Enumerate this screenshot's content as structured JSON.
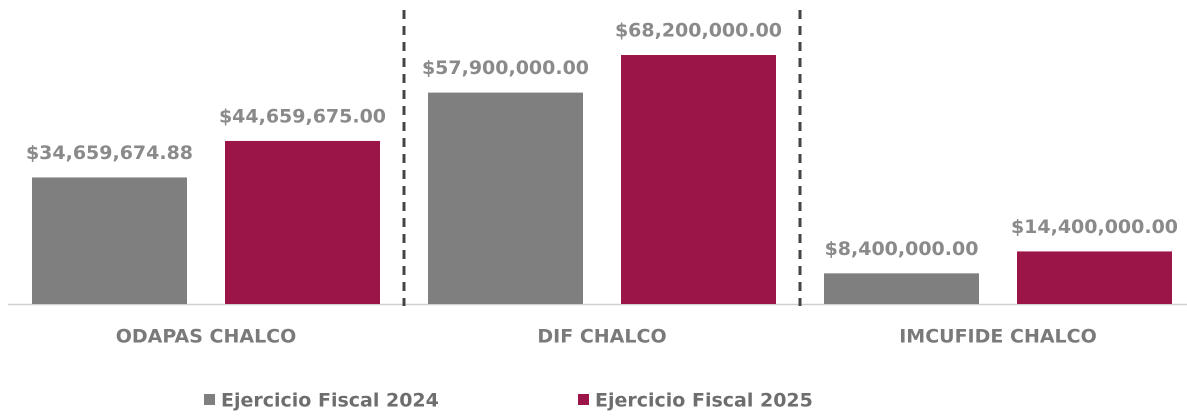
{
  "chart_data": {
    "type": "bar",
    "categories": [
      "ODAPAS CHALCO",
      "DIF CHALCO",
      "IMCUFIDE CHALCO"
    ],
    "series": [
      {
        "name": "Ejercicio Fiscal 2024",
        "color": "#7f7f7f",
        "values": [
          34659674.88,
          57900000,
          8400000
        ],
        "value_labels": [
          "$34,659,674.88",
          "$57,900,000.00",
          "$8,400,000.00"
        ]
      },
      {
        "name": "Ejercicio Fiscal 2025",
        "color": "#9b1548",
        "values": [
          44659675,
          68200000,
          14400000
        ],
        "value_labels": [
          "$44,659,675.00",
          "$68,200,000.00",
          "$14,400,000.00"
        ]
      }
    ]
  }
}
